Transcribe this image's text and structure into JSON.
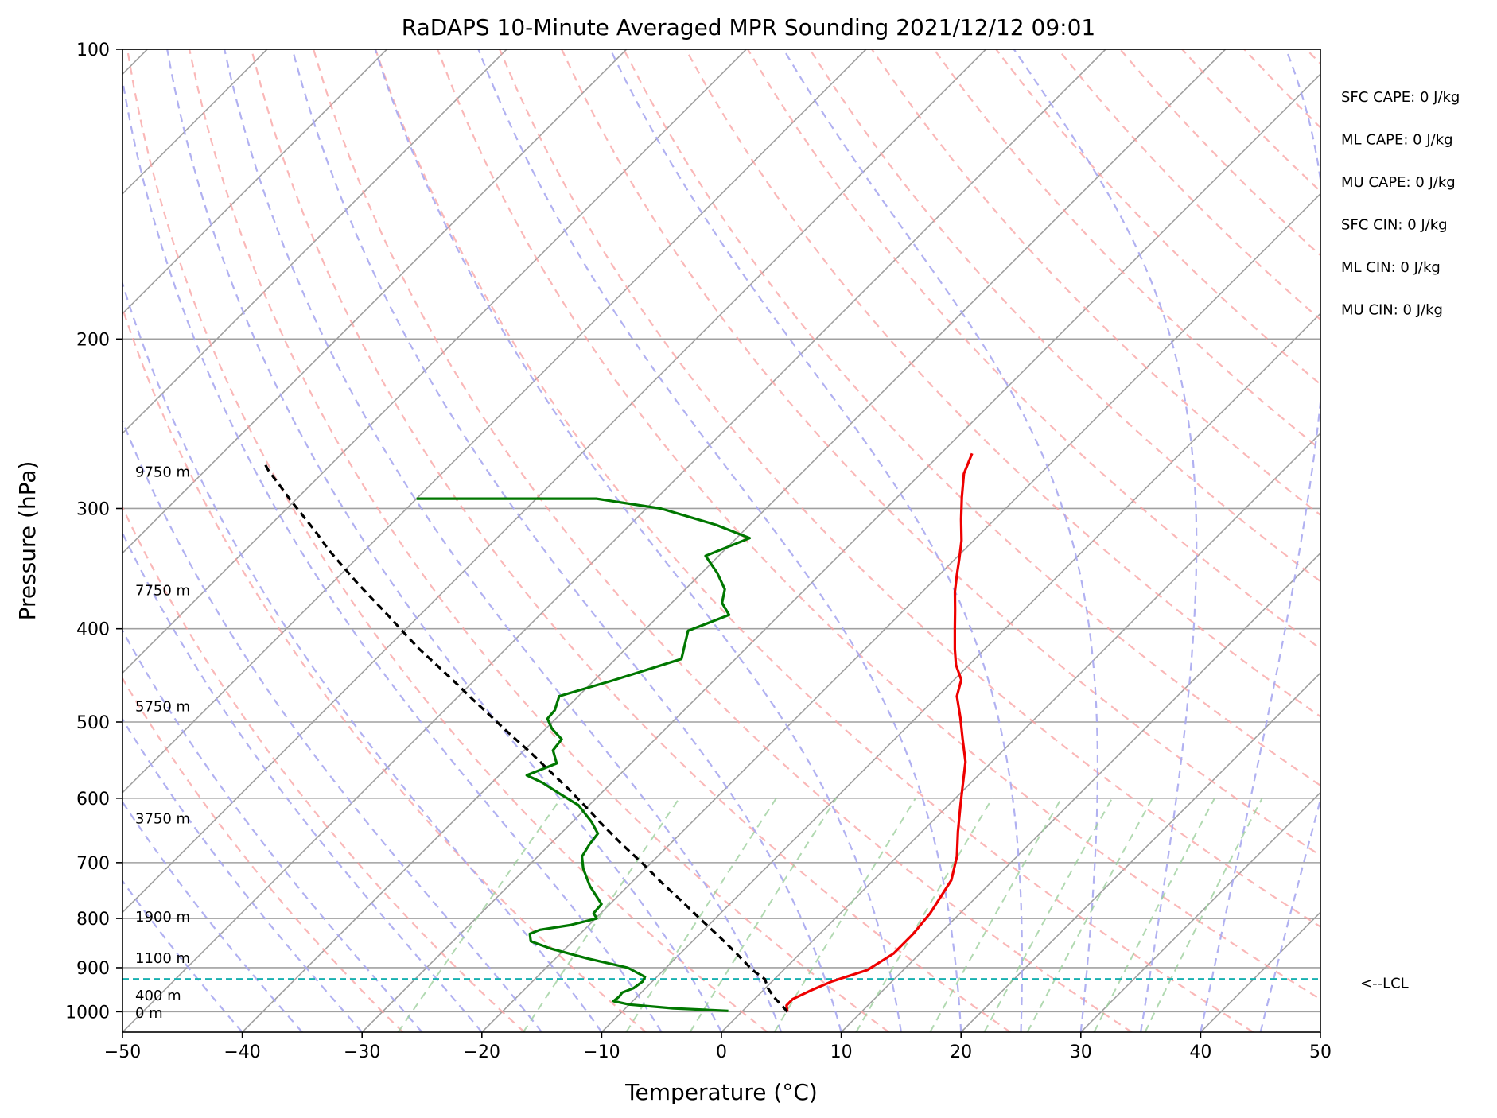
{
  "chart_data": {
    "type": "line",
    "title": "RaDAPS 10-Minute Averaged MPR Sounding 2021/12/12 09:01",
    "xlabel": "Temperature (°C)",
    "ylabel": "Pressure (hPa)",
    "xlim": [
      -50,
      50
    ],
    "ylim": [
      1050,
      100
    ],
    "y_scale": "log",
    "x_ticks": [
      -50,
      -40,
      -30,
      -20,
      -10,
      0,
      10,
      20,
      30,
      40,
      50
    ],
    "x_tick_labels": [
      "−50",
      "−40",
      "−30",
      "−20",
      "−10",
      "0",
      "10",
      "20",
      "30",
      "40",
      "50"
    ],
    "y_ticks": [
      100,
      200,
      300,
      400,
      500,
      600,
      700,
      800,
      900,
      1000
    ],
    "y_tick_labels": [
      "100",
      "200",
      "300",
      "400",
      "500",
      "600",
      "700",
      "800",
      "900",
      "1000"
    ],
    "grid": true,
    "skew": 45,
    "series": [
      {
        "color": "#ee0000",
        "points": [
          [
            3.8,
            1000
          ],
          [
            3.2,
            985
          ],
          [
            3.2,
            970
          ],
          [
            4.0,
            950
          ],
          [
            5.0,
            930
          ],
          [
            7.0,
            905
          ],
          [
            7.8,
            870
          ],
          [
            7.8,
            830
          ],
          [
            7.5,
            790
          ],
          [
            6.5,
            730
          ],
          [
            5.0,
            690
          ],
          [
            3.0,
            650
          ],
          [
            1.0,
            610
          ],
          [
            -0.3,
            585
          ],
          [
            -2.2,
            550
          ],
          [
            -4.4,
            520
          ],
          [
            -6.3,
            495
          ],
          [
            -8.4,
            470
          ],
          [
            -9.4,
            452
          ],
          [
            -11.1,
            436
          ],
          [
            -12.5,
            420
          ],
          [
            -14.2,
            400
          ],
          [
            -15.7,
            383
          ],
          [
            -17.3,
            366
          ],
          [
            -18.5,
            352
          ],
          [
            -19.7,
            338
          ],
          [
            -21.0,
            324
          ],
          [
            -22.8,
            308
          ],
          [
            -24.6,
            292
          ],
          [
            -26.4,
            276
          ],
          [
            -27.4,
            263
          ]
        ]
      },
      {
        "color": "#007700",
        "points": [
          [
            -1.2,
            998
          ],
          [
            -6.0,
            992
          ],
          [
            -10.0,
            983
          ],
          [
            -11.6,
            975
          ],
          [
            -11.5,
            964
          ],
          [
            -11.6,
            955
          ],
          [
            -11.0,
            945
          ],
          [
            -10.8,
            930
          ],
          [
            -11.0,
            920
          ],
          [
            -13.2,
            900
          ],
          [
            -17.4,
            880
          ],
          [
            -21.2,
            860
          ],
          [
            -23.5,
            845
          ],
          [
            -24.2,
            830
          ],
          [
            -23.7,
            822
          ],
          [
            -21.6,
            813
          ],
          [
            -19.9,
            800
          ],
          [
            -20.6,
            790
          ],
          [
            -20.7,
            773
          ],
          [
            -23.2,
            740
          ],
          [
            -25.2,
            710
          ],
          [
            -26.3,
            690
          ],
          [
            -26.7,
            670
          ],
          [
            -26.9,
            653
          ],
          [
            -28.4,
            635
          ],
          [
            -30.9,
            610
          ],
          [
            -33.2,
            595
          ],
          [
            -35.8,
            578
          ],
          [
            -37.7,
            568
          ],
          [
            -36.2,
            552
          ],
          [
            -37.6,
            535
          ],
          [
            -37.8,
            521
          ],
          [
            -39.5,
            508
          ],
          [
            -40.7,
            496
          ],
          [
            -40.8,
            486
          ],
          [
            -41.6,
            470
          ],
          [
            -38.5,
            453
          ],
          [
            -34.5,
            430
          ],
          [
            -36.3,
            402
          ],
          [
            -34.2,
            387
          ],
          [
            -35.8,
            376
          ],
          [
            -36.7,
            364
          ],
          [
            -38.7,
            350
          ],
          [
            -41.1,
            336
          ],
          [
            -38.9,
            322
          ],
          [
            -42.8,
            312
          ],
          [
            -48.8,
            300
          ],
          [
            -55.0,
            293
          ],
          [
            -70.0,
            293
          ]
        ]
      },
      {
        "color": "#000000",
        "points": [
          [
            3.8,
            1000
          ],
          [
            2.8,
            985
          ],
          [
            1.4,
            965
          ],
          [
            0.2,
            945
          ],
          [
            -0.8,
            925
          ],
          [
            -2.6,
            905
          ],
          [
            -5.3,
            870
          ],
          [
            -8.2,
            835
          ],
          [
            -11.3,
            800
          ],
          [
            -14.5,
            765
          ],
          [
            -17.6,
            733
          ],
          [
            -20.8,
            700
          ],
          [
            -24.2,
            668
          ],
          [
            -27.5,
            637
          ],
          [
            -30.3,
            611
          ],
          [
            -33.3,
            585
          ],
          [
            -36.3,
            561
          ],
          [
            -39.4,
            537
          ],
          [
            -42.5,
            515
          ],
          [
            -45.5,
            494
          ],
          [
            -48.5,
            474
          ],
          [
            -51.4,
            455
          ],
          [
            -54.3,
            437
          ],
          [
            -57.2,
            420
          ],
          [
            -60.0,
            403
          ],
          [
            -62.7,
            387
          ],
          [
            -65.4,
            372
          ],
          [
            -68.0,
            358
          ],
          [
            -70.6,
            344
          ],
          [
            -73.1,
            331
          ],
          [
            -75.5,
            318
          ],
          [
            -77.9,
            306
          ],
          [
            -80.2,
            295
          ],
          [
            -82.5,
            284
          ],
          [
            -84.7,
            274
          ],
          [
            -85.9,
            268
          ]
        ]
      }
    ],
    "lcl_pressure": 925,
    "lcl_label": "<--LCL",
    "height_labels": [
      {
        "text": "9750 m",
        "p": 275
      },
      {
        "text": "7750 m",
        "p": 365
      },
      {
        "text": "5750 m",
        "p": 482
      },
      {
        "text": "3750 m",
        "p": 630
      },
      {
        "text": "1900 m",
        "p": 797
      },
      {
        "text": "1100 m",
        "p": 880
      },
      {
        "text": "400 m",
        "p": 962
      },
      {
        "text": "0 m",
        "p": 1003
      }
    ],
    "indices": [
      "SFC CAPE: 0 J/kg",
      "ML CAPE: 0 J/kg",
      "MU CAPE: 0 J/kg",
      "SFC CIN: 0 J/kg",
      "ML CIN: 0 J/kg",
      "MU CIN: 0 J/kg"
    ],
    "colors": {
      "temperature": "#ee0000",
      "dewpoint": "#007700",
      "parcel": "#000000",
      "lcl": "#17b0b0",
      "dry_adiabat": "#f8a0a0",
      "moist_adiabat": "#a8a8f0",
      "mixing_ratio": "#9ed09e",
      "isotherm": "#a0a0a0"
    }
  }
}
